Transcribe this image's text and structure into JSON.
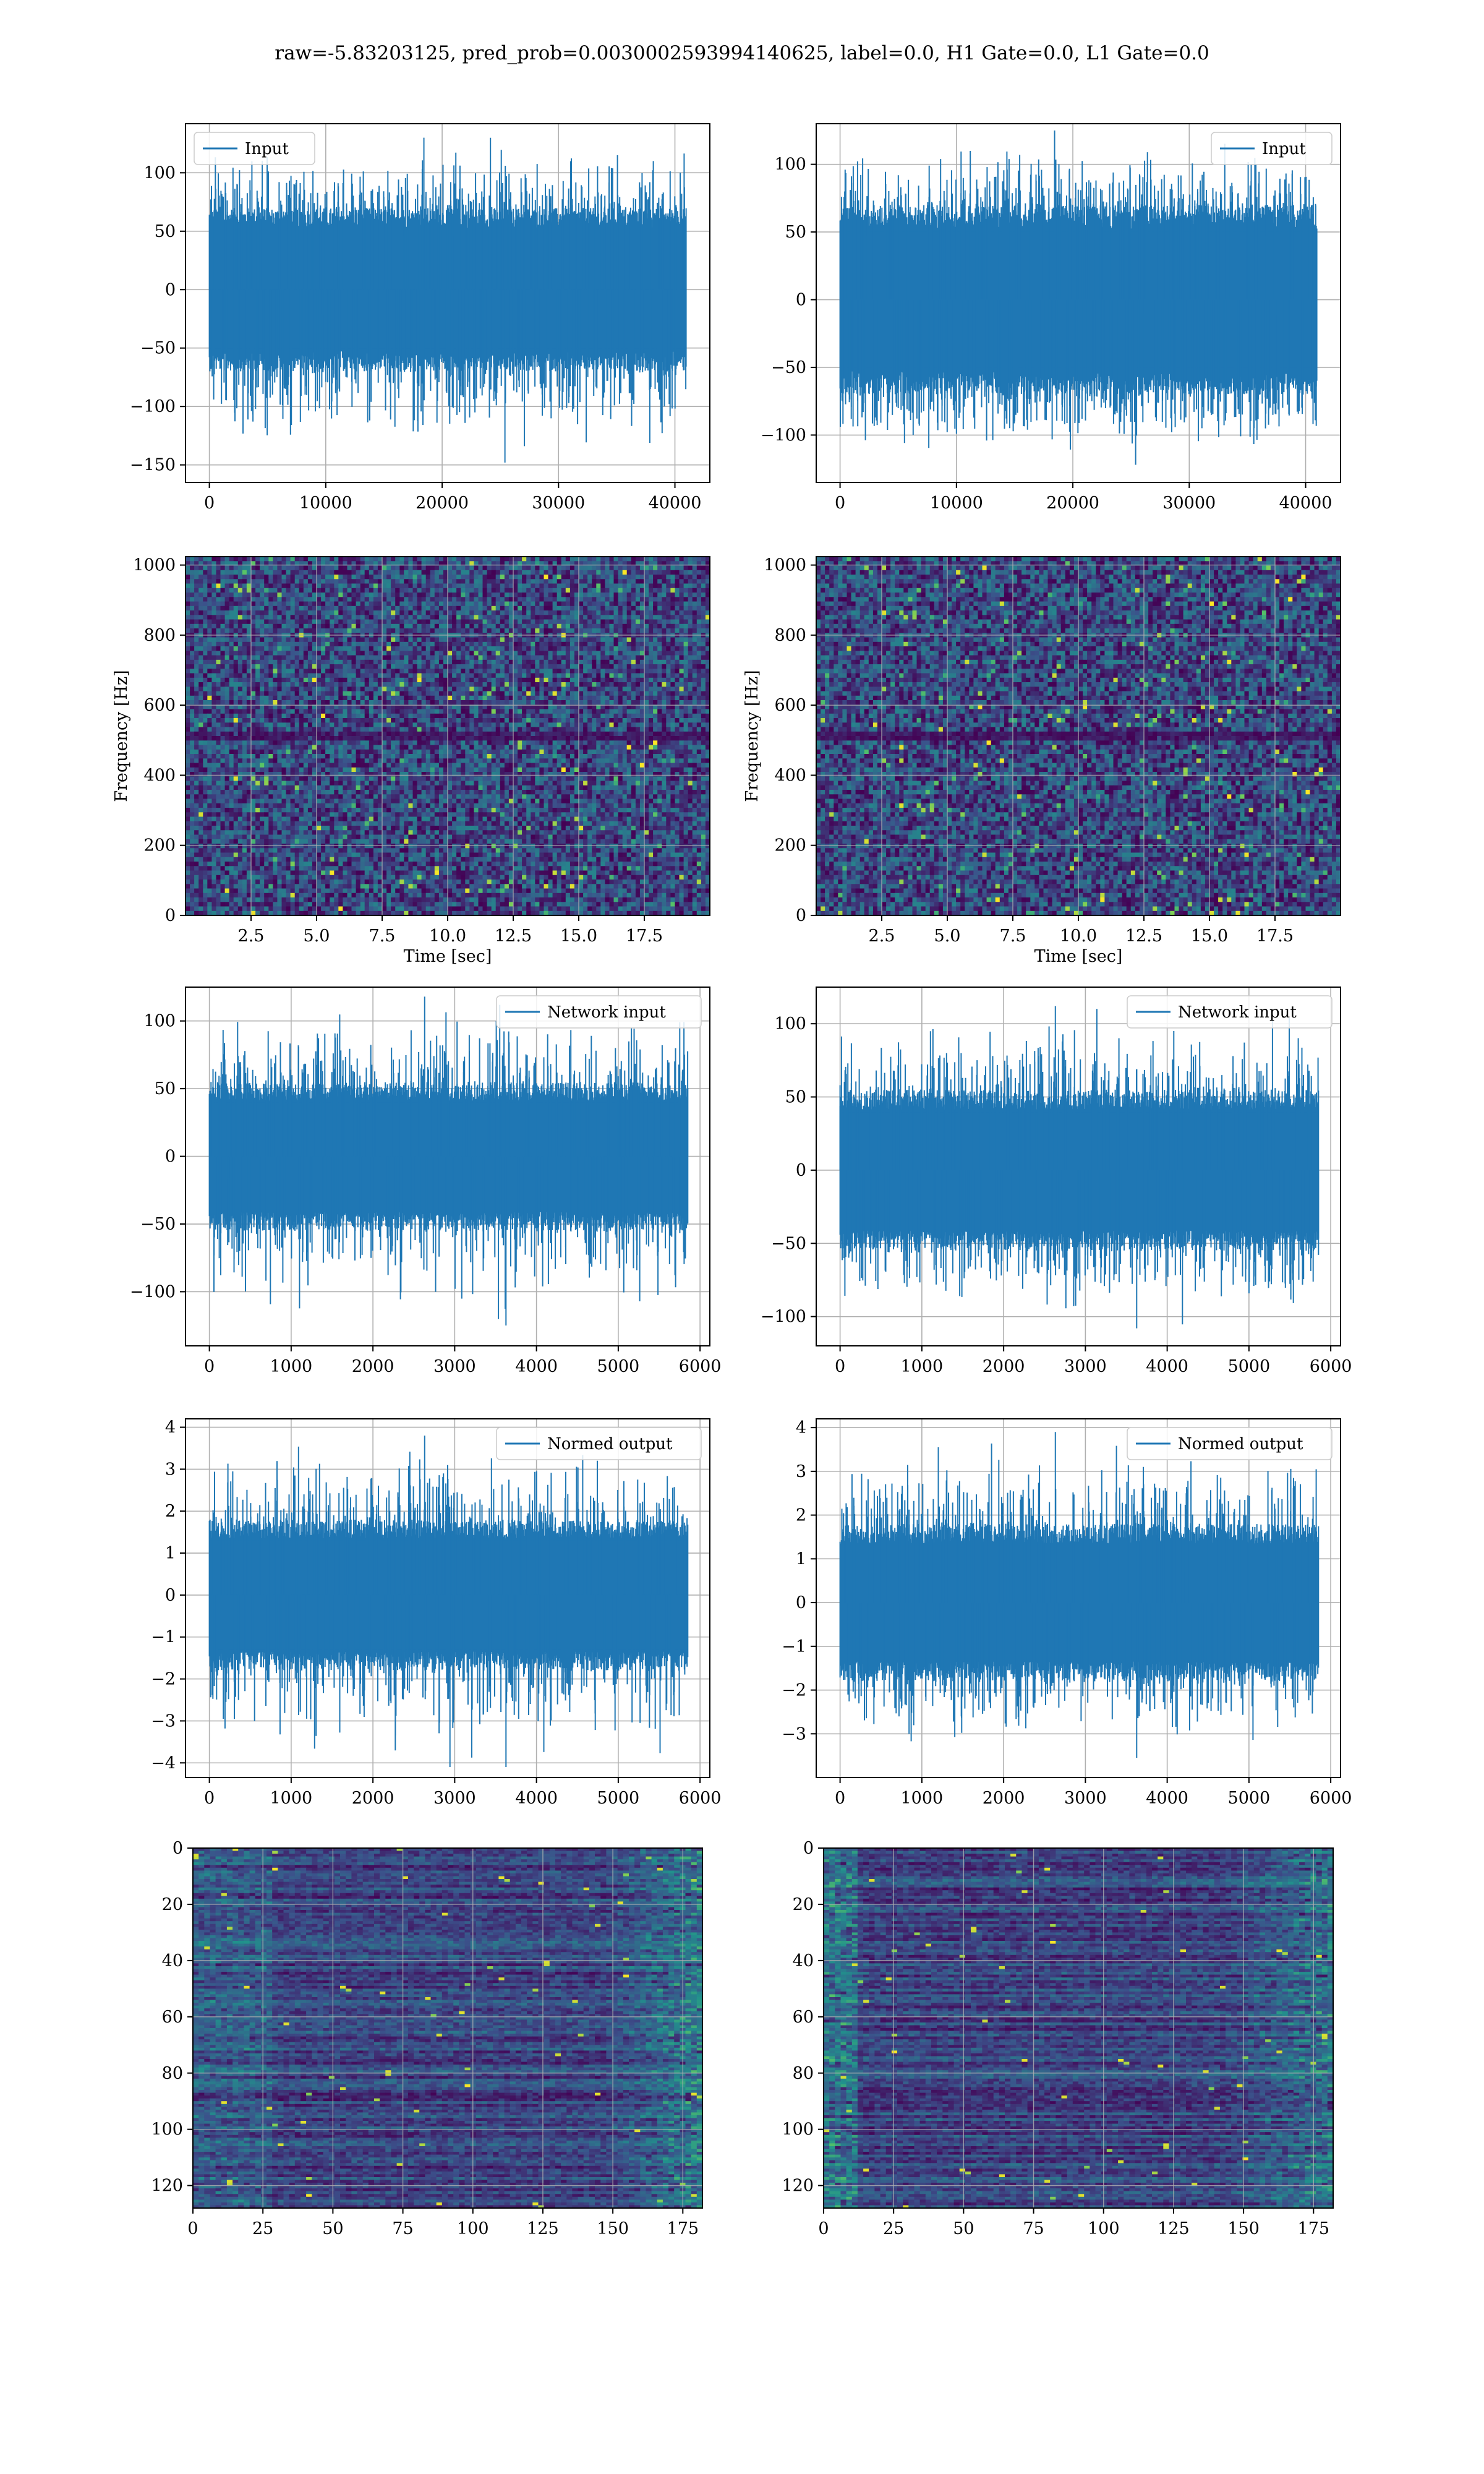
{
  "suptitle": "raw=-5.83203125, pred_prob=0.0030002593994140625, label=0.0, H1 Gate=0.0, L1 Gate=0.0",
  "colors": {
    "line": "#1f77b4",
    "grid": "#b0b0b0",
    "axes_edge": "#000000",
    "viridis_dark": "#440154",
    "viridis_mid": "#21918c",
    "viridis_bright": "#fde725"
  },
  "chart_data": [
    {
      "id": "input-left",
      "type": "line",
      "legend": "Input",
      "legend_loc": "upper-left",
      "xlim": [
        -2050,
        43000
      ],
      "ylim": [
        -165,
        142
      ],
      "xticks": [
        0,
        10000,
        20000,
        30000,
        40000
      ],
      "xtick_labels": [
        "0",
        "10000",
        "20000",
        "30000",
        "40000"
      ],
      "yticks": [
        -150,
        -100,
        -50,
        0,
        50,
        100
      ],
      "ytick_labels": [
        "−150",
        "−100",
        "−50",
        "0",
        "50",
        "100"
      ],
      "xrange": [
        0,
        40960
      ],
      "envelope": [
        -70,
        70
      ],
      "spike_max": 130,
      "spike_min": -148,
      "n_points": 900,
      "grid": true
    },
    {
      "id": "input-right",
      "type": "line",
      "legend": "Input",
      "legend_loc": "upper-right",
      "xlim": [
        -2050,
        43000
      ],
      "ylim": [
        -135,
        130
      ],
      "xticks": [
        0,
        10000,
        20000,
        30000,
        40000
      ],
      "xtick_labels": [
        "0",
        "10000",
        "20000",
        "30000",
        "40000"
      ],
      "yticks": [
        -100,
        -50,
        0,
        50,
        100
      ],
      "ytick_labels": [
        "−100",
        "−50",
        "0",
        "50",
        "100"
      ],
      "xrange": [
        0,
        40960
      ],
      "envelope": [
        -70,
        70
      ],
      "spike_max": 125,
      "spike_min": -122,
      "n_points": 900,
      "grid": true
    },
    {
      "id": "spec-left",
      "type": "heatmap",
      "colormap": "viridis",
      "xlabel": "Time [sec]",
      "ylabel": "Frequency [Hz]",
      "xlim": [
        0,
        20
      ],
      "ylim": [
        0,
        1024
      ],
      "xticks": [
        2.5,
        5.0,
        7.5,
        10.0,
        12.5,
        15.0,
        17.5
      ],
      "xtick_labels": [
        "2.5",
        "5.0",
        "7.5",
        "10.0",
        "12.5",
        "15.0",
        "17.5"
      ],
      "yticks": [
        0,
        200,
        400,
        600,
        800,
        1000
      ],
      "ytick_labels": [
        "0",
        "200",
        "400",
        "600",
        "800",
        "1000"
      ],
      "grid": true
    },
    {
      "id": "spec-right",
      "type": "heatmap",
      "colormap": "viridis",
      "xlabel": "Time [sec]",
      "ylabel": "Frequency [Hz]",
      "xlim": [
        0,
        20
      ],
      "ylim": [
        0,
        1024
      ],
      "xticks": [
        2.5,
        5.0,
        7.5,
        10.0,
        12.5,
        15.0,
        17.5
      ],
      "xtick_labels": [
        "2.5",
        "5.0",
        "7.5",
        "10.0",
        "12.5",
        "15.0",
        "17.5"
      ],
      "yticks": [
        0,
        200,
        400,
        600,
        800,
        1000
      ],
      "ytick_labels": [
        "0",
        "200",
        "400",
        "600",
        "800",
        "1000"
      ],
      "grid": true
    },
    {
      "id": "network-left",
      "type": "line",
      "legend": "Network input",
      "legend_loc": "upper-right",
      "xlim": [
        -292,
        6120
      ],
      "ylim": [
        -140,
        125
      ],
      "xticks": [
        0,
        1000,
        2000,
        3000,
        4000,
        5000,
        6000
      ],
      "xtick_labels": [
        "0",
        "1000",
        "2000",
        "3000",
        "4000",
        "5000",
        "6000"
      ],
      "yticks": [
        -100,
        -50,
        0,
        50,
        100
      ],
      "ytick_labels": [
        "−100",
        "−50",
        "0",
        "50",
        "100"
      ],
      "xrange": [
        0,
        5850
      ],
      "envelope": [
        -55,
        55
      ],
      "spike_max": 118,
      "spike_min": -125,
      "n_points": 700,
      "grid": true
    },
    {
      "id": "network-right",
      "type": "line",
      "legend": "Network input",
      "legend_loc": "upper-right",
      "xlim": [
        -292,
        6120
      ],
      "ylim": [
        -120,
        125
      ],
      "xticks": [
        0,
        1000,
        2000,
        3000,
        4000,
        5000,
        6000
      ],
      "xtick_labels": [
        "0",
        "1000",
        "2000",
        "3000",
        "4000",
        "5000",
        "6000"
      ],
      "yticks": [
        -100,
        -50,
        0,
        50,
        100
      ],
      "ytick_labels": [
        "−100",
        "−50",
        "0",
        "50",
        "100"
      ],
      "xrange": [
        0,
        5850
      ],
      "envelope": [
        -55,
        55
      ],
      "spike_max": 112,
      "spike_min": -108,
      "n_points": 700,
      "grid": true
    },
    {
      "id": "normed-left",
      "type": "line",
      "legend": "Normed output",
      "legend_loc": "upper-right",
      "xlim": [
        -292,
        6120
      ],
      "ylim": [
        -4.35,
        4.2
      ],
      "xticks": [
        0,
        1000,
        2000,
        3000,
        4000,
        5000,
        6000
      ],
      "xtick_labels": [
        "0",
        "1000",
        "2000",
        "3000",
        "4000",
        "5000",
        "6000"
      ],
      "yticks": [
        -4,
        -3,
        -2,
        -1,
        0,
        1,
        2,
        3,
        4
      ],
      "ytick_labels": [
        "−4",
        "−3",
        "−2",
        "−1",
        "0",
        "1",
        "2",
        "3",
        "4"
      ],
      "xrange": [
        0,
        5850
      ],
      "envelope": [
        -1.8,
        1.8
      ],
      "spike_max": 3.8,
      "spike_min": -4.1,
      "n_points": 700,
      "grid": true
    },
    {
      "id": "normed-right",
      "type": "line",
      "legend": "Normed output",
      "legend_loc": "upper-right",
      "xlim": [
        -292,
        6120
      ],
      "ylim": [
        -4.0,
        4.2
      ],
      "xticks": [
        0,
        1000,
        2000,
        3000,
        4000,
        5000,
        6000
      ],
      "xtick_labels": [
        "0",
        "1000",
        "2000",
        "3000",
        "4000",
        "5000",
        "6000"
      ],
      "yticks": [
        -3,
        -2,
        -1,
        0,
        1,
        2,
        3,
        4
      ],
      "ytick_labels": [
        "−3",
        "−2",
        "−1",
        "0",
        "1",
        "2",
        "3",
        "4"
      ],
      "xrange": [
        0,
        5850
      ],
      "envelope": [
        -1.8,
        1.8
      ],
      "spike_max": 3.9,
      "spike_min": -3.55,
      "n_points": 700,
      "grid": true
    },
    {
      "id": "features-left",
      "type": "heatmap",
      "colormap": "viridis",
      "xlim": [
        0,
        182
      ],
      "ylim": [
        128,
        0
      ],
      "xticks": [
        0,
        25,
        50,
        75,
        100,
        125,
        150,
        175
      ],
      "xtick_labels": [
        "0",
        "25",
        "50",
        "75",
        "100",
        "125",
        "150",
        "175"
      ],
      "yticks": [
        0,
        20,
        40,
        60,
        80,
        100,
        120
      ],
      "ytick_labels": [
        "0",
        "20",
        "40",
        "60",
        "80",
        "100",
        "120"
      ],
      "grid": true
    },
    {
      "id": "features-right",
      "type": "heatmap",
      "colormap": "viridis",
      "xlim": [
        0,
        182
      ],
      "ylim": [
        128,
        0
      ],
      "xticks": [
        0,
        25,
        50,
        75,
        100,
        125,
        150,
        175
      ],
      "xtick_labels": [
        "0",
        "25",
        "50",
        "75",
        "100",
        "125",
        "150",
        "175"
      ],
      "yticks": [
        0,
        20,
        40,
        60,
        80,
        100,
        120
      ],
      "ytick_labels": [
        "0",
        "20",
        "40",
        "60",
        "80",
        "100",
        "120"
      ],
      "grid": true
    }
  ]
}
